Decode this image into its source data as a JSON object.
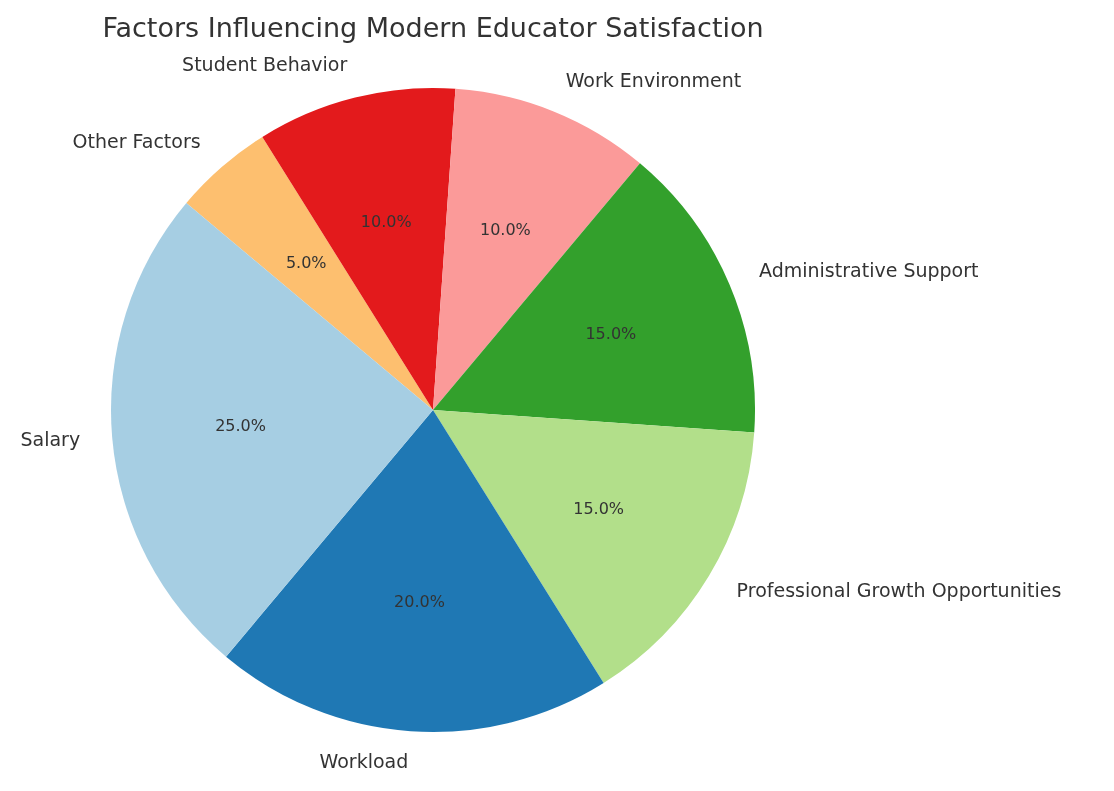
{
  "chart_data": {
    "type": "pie",
    "title": "Factors Influencing Modern Educator Satisfaction",
    "categories": [
      "Other Factors",
      "Student Behavior",
      "Work Environment",
      "Administrative Support",
      "Professional Growth Opportunities",
      "Workload",
      "Salary"
    ],
    "values": [
      5,
      10,
      10,
      15,
      15,
      20,
      25
    ],
    "colors": [
      "#fdbf6f",
      "#e31a1c",
      "#fb9a99",
      "#33a02c",
      "#b2df8a",
      "#1f78b4",
      "#a6cee3"
    ],
    "value_labels": [
      "5.0%",
      "10.0%",
      "10.0%",
      "15.0%",
      "15.0%",
      "20.0%",
      "25.0%"
    ],
    "legend": false
  }
}
